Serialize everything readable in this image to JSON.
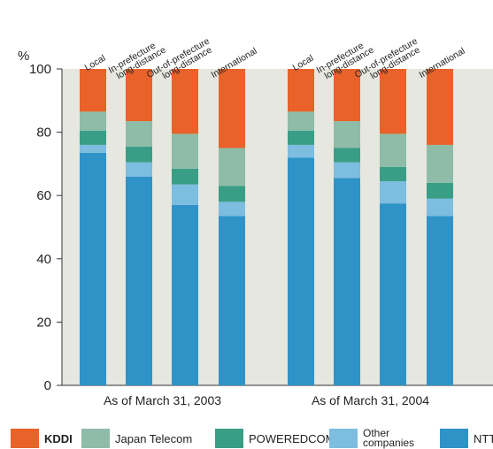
{
  "chart_data": {
    "type": "bar",
    "stacked": true,
    "y_unit_label": "%",
    "ylim": [
      0,
      100
    ],
    "yticks": [
      0,
      20,
      40,
      60,
      80,
      100
    ],
    "grid": false,
    "legend_placement": "bottom",
    "categories": [
      "Local",
      "In-prefecture long-distance",
      "Out-of-prefecture long-distance",
      "International",
      "Local",
      "In-prefecture long-distance",
      "Out-of-prefecture long-distance",
      "International"
    ],
    "category_lines": [
      [
        "Local"
      ],
      [
        "In-prefecture",
        "long-distance"
      ],
      [
        "Out-of-prefecture",
        "long-distance"
      ],
      [
        "International"
      ],
      [
        "Local"
      ],
      [
        "In-prefecture",
        "long-distance"
      ],
      [
        "Out-of-prefecture",
        "long-distance"
      ],
      [
        "International"
      ]
    ],
    "groups": [
      {
        "label": "As of March 31, 2003",
        "count": 4
      },
      {
        "label": "As of March 31, 2004",
        "count": 4
      }
    ],
    "series": [
      {
        "name": "NTT",
        "color": "#2f93c8",
        "values": [
          73.5,
          66,
          57,
          53.5,
          72,
          65.5,
          57.5,
          53.5
        ]
      },
      {
        "name": "Other companies",
        "color": "#7dbde0",
        "values": [
          2.5,
          4.5,
          6.5,
          4.5,
          4,
          5,
          7,
          5.5
        ]
      },
      {
        "name": "POWEREDCOM",
        "color": "#3a9e86",
        "values": [
          4.5,
          5,
          5,
          5,
          4.5,
          4.5,
          4.5,
          5
        ]
      },
      {
        "name": "Japan Telecom",
        "color": "#8fbca8",
        "values": [
          6,
          8,
          11,
          12,
          6,
          8.5,
          10.5,
          12
        ]
      },
      {
        "name": "KDDI",
        "color": "#e8622a",
        "values": [
          13.5,
          16.5,
          20.5,
          25,
          13.5,
          16.5,
          20.5,
          24
        ]
      }
    ]
  },
  "legend": {
    "items": [
      {
        "label": "KDDI",
        "color": "#e8622a",
        "bold": true
      },
      {
        "label": "Japan Telecom",
        "color": "#8fbca8"
      },
      {
        "label": "POWEREDCOM",
        "color": "#3a9e86"
      },
      {
        "label": "Other companies",
        "lines": [
          "Other",
          "companies"
        ],
        "color": "#7dbde0"
      },
      {
        "label": "NTT",
        "color": "#2f93c8"
      }
    ]
  },
  "colors": {
    "plot_background": "#e6e7df",
    "axis": "#333333"
  }
}
